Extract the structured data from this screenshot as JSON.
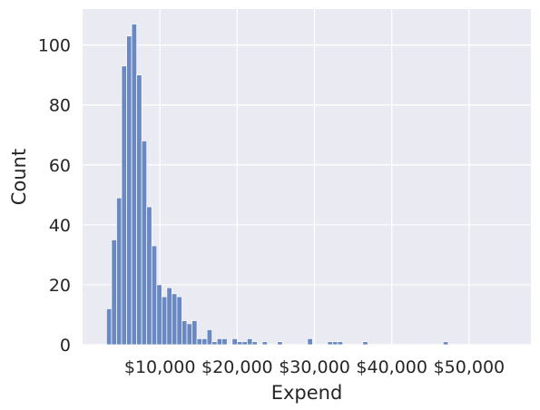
{
  "chart_data": {
    "type": "bar",
    "title": "",
    "xlabel": "Expend",
    "ylabel": "Count",
    "grid": true,
    "legend": "none",
    "xlim": [
      0,
      58000
    ],
    "ylim": [
      0,
      112
    ],
    "x_ticks": [
      {
        "value": 10000,
        "label": "$10,000"
      },
      {
        "value": 20000,
        "label": "$20,000"
      },
      {
        "value": 30000,
        "label": "$30,000"
      },
      {
        "value": 40000,
        "label": "$40,000"
      },
      {
        "value": 50000,
        "label": "$50,000"
      }
    ],
    "y_ticks": [
      {
        "value": 0,
        "label": "0"
      },
      {
        "value": 20,
        "label": "20"
      },
      {
        "value": 40,
        "label": "40"
      },
      {
        "value": 60,
        "label": "60"
      },
      {
        "value": 80,
        "label": "80"
      },
      {
        "value": 100,
        "label": "100"
      }
    ],
    "bin_start": 3100,
    "bin_width": 650,
    "counts": [
      12,
      35,
      49,
      93,
      103,
      107,
      90,
      68,
      46,
      33,
      20,
      16,
      19,
      17,
      16,
      8,
      7,
      8,
      2,
      2,
      5,
      1,
      2,
      2,
      0,
      2,
      1,
      1,
      2,
      1,
      0,
      1,
      0,
      0,
      1,
      0,
      0,
      0,
      0,
      0,
      2,
      0,
      0,
      0,
      1,
      1,
      1,
      0,
      0,
      0,
      0,
      1,
      0,
      0,
      0,
      0,
      0,
      0,
      0,
      0,
      0,
      0,
      0,
      0,
      0,
      0,
      0,
      1
    ],
    "bar_color": "#6a89c2",
    "background_color": "#eaeaf2",
    "grid_color": "#ffffff"
  }
}
